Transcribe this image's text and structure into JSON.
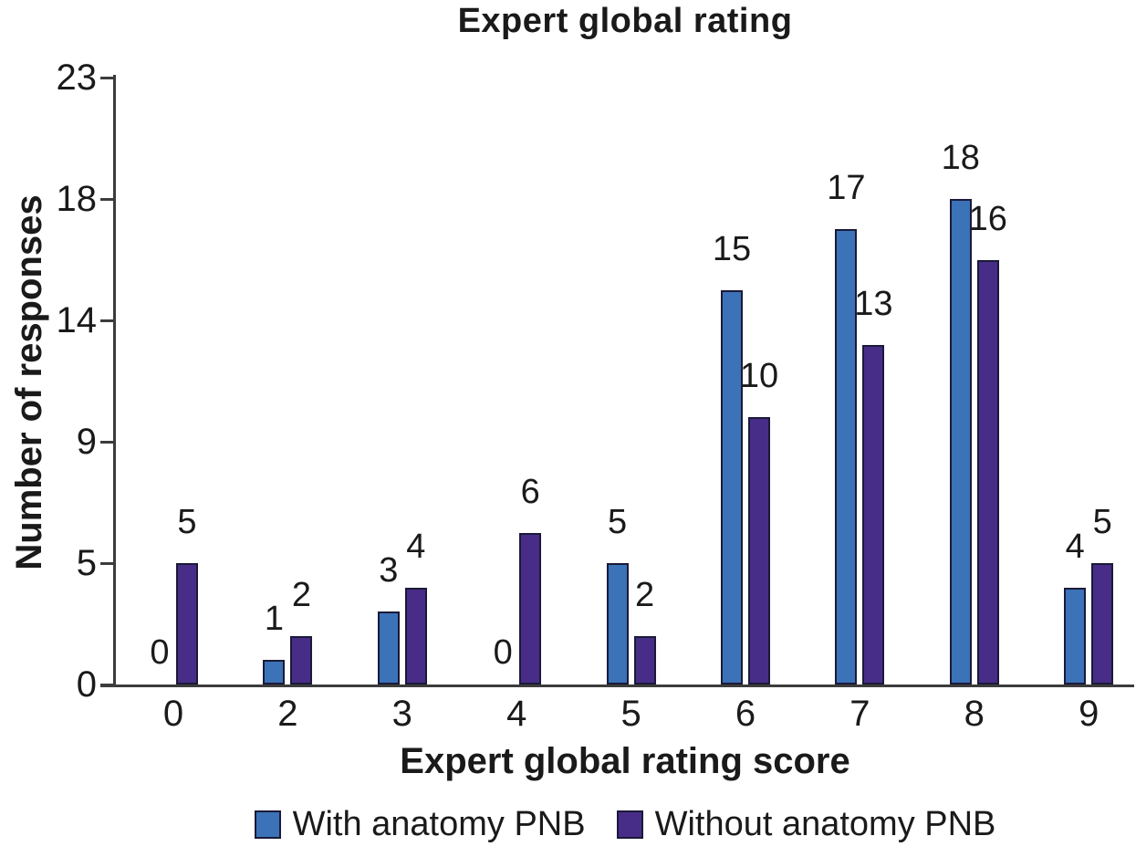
{
  "chart_data": {
    "type": "bar",
    "title": "Expert global rating",
    "xlabel": "Expert global rating score",
    "ylabel": "Number of responses",
    "categories": [
      "0",
      "2",
      "3",
      "4",
      "5",
      "6",
      "7",
      "8",
      "9"
    ],
    "series": [
      {
        "name": "With anatomy PNB",
        "color": "#3B72B8",
        "values": [
          0,
          1,
          3,
          0,
          5,
          15,
          17,
          18,
          4
        ]
      },
      {
        "name": "Without anatomy PNB",
        "color": "#472D87",
        "values": [
          5,
          2,
          4,
          6,
          2,
          10,
          13,
          16,
          5
        ]
      }
    ],
    "yticks": [
      0,
      5,
      9,
      14,
      18,
      23
    ],
    "ylim": [
      0,
      23
    ],
    "grid": false,
    "data_labels": true,
    "legend_position": "bottom",
    "bar_outline_color": "#1A1A38",
    "axis_color": "#3C3C3C",
    "text_color": "#1A1A1A",
    "background_color": "#FFFFFF"
  }
}
